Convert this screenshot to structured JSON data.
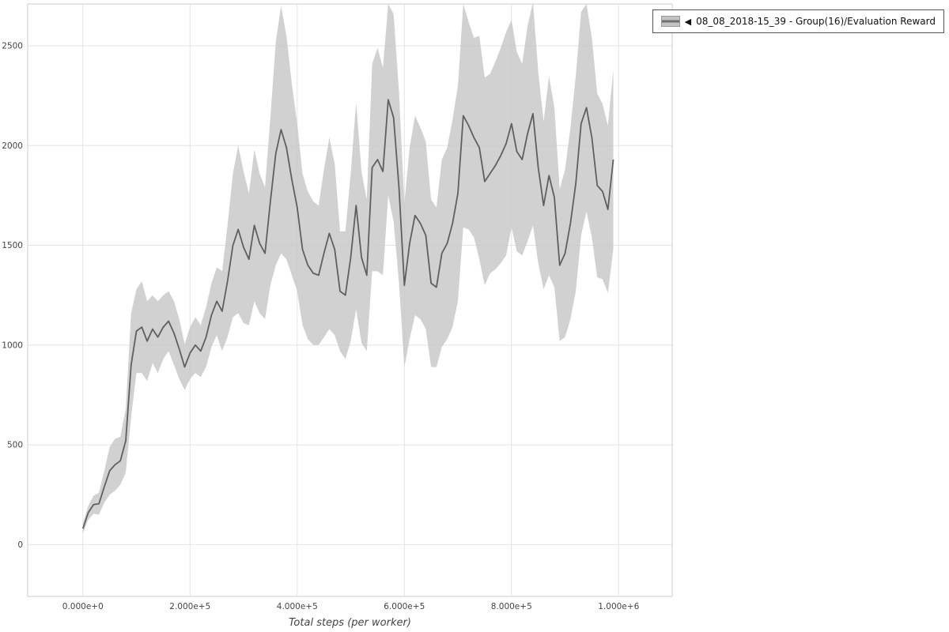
{
  "legend": {
    "items": [
      {
        "collapse_icon": "◀",
        "label": "08_08_2018-15_39 - Group(16)/Evaluation Reward"
      }
    ]
  },
  "chart_data": {
    "type": "line",
    "title": "",
    "xlabel": "Total steps (per worker)",
    "ylabel": "",
    "xlim": [
      -103000,
      1100000
    ],
    "ylim": [
      -260,
      2710
    ],
    "grid": true,
    "legend_position": "top-right",
    "colors": {
      "line": "#5f5f5f",
      "band": "#c5c5c5",
      "grid": "#e4e4e4",
      "border": "#cccccc",
      "tick_text": "#444444"
    },
    "x_ticks": [
      {
        "v": 0,
        "label": "0.000e+0"
      },
      {
        "v": 200000,
        "label": "2.000e+5"
      },
      {
        "v": 400000,
        "label": "4.000e+5"
      },
      {
        "v": 600000,
        "label": "6.000e+5"
      },
      {
        "v": 800000,
        "label": "8.000e+5"
      },
      {
        "v": 1000000,
        "label": "1.000e+6"
      }
    ],
    "y_ticks": [
      {
        "v": 0,
        "label": "0"
      },
      {
        "v": 500,
        "label": "500"
      },
      {
        "v": 1000,
        "label": "1000"
      },
      {
        "v": 1500,
        "label": "1500"
      },
      {
        "v": 2000,
        "label": "2000"
      },
      {
        "v": 2500,
        "label": "2500"
      }
    ],
    "series": [
      {
        "name": "08_08_2018-15_39 - Group(16)/Evaluation Reward",
        "x": [
          0,
          10000,
          20000,
          30000,
          40000,
          50000,
          60000,
          70000,
          80000,
          90000,
          100000,
          110000,
          120000,
          130000,
          140000,
          150000,
          160000,
          170000,
          180000,
          190000,
          200000,
          210000,
          220000,
          230000,
          240000,
          250000,
          260000,
          270000,
          280000,
          290000,
          300000,
          310000,
          320000,
          330000,
          340000,
          350000,
          360000,
          370000,
          380000,
          390000,
          400000,
          410000,
          420000,
          430000,
          440000,
          450000,
          460000,
          470000,
          480000,
          490000,
          500000,
          510000,
          520000,
          530000,
          540000,
          550000,
          560000,
          570000,
          580000,
          590000,
          600000,
          610000,
          620000,
          630000,
          640000,
          650000,
          660000,
          670000,
          680000,
          690000,
          700000,
          710000,
          720000,
          730000,
          740000,
          750000,
          760000,
          770000,
          780000,
          790000,
          800000,
          810000,
          820000,
          830000,
          840000,
          850000,
          860000,
          870000,
          880000,
          890000,
          900000,
          910000,
          920000,
          930000,
          940000,
          950000,
          960000,
          970000,
          980000,
          990000
        ],
        "mean": [
          80,
          160,
          200,
          205,
          290,
          370,
          400,
          420,
          520,
          900,
          1070,
          1090,
          1020,
          1080,
          1040,
          1090,
          1120,
          1060,
          980,
          890,
          960,
          1000,
          970,
          1040,
          1150,
          1220,
          1170,
          1320,
          1500,
          1580,
          1490,
          1430,
          1600,
          1510,
          1460,
          1720,
          1960,
          2080,
          1990,
          1830,
          1690,
          1480,
          1400,
          1360,
          1350,
          1460,
          1560,
          1480,
          1270,
          1250,
          1440,
          1700,
          1440,
          1350,
          1890,
          1930,
          1870,
          2230,
          2140,
          1790,
          1300,
          1510,
          1650,
          1610,
          1550,
          1310,
          1290,
          1460,
          1510,
          1610,
          1760,
          2150,
          2100,
          2040,
          1990,
          1820,
          1860,
          1900,
          1950,
          2010,
          2110,
          1970,
          1930,
          2060,
          2160,
          1890,
          1700,
          1850,
          1740,
          1400,
          1460,
          1610,
          1810,
          2110,
          2190,
          2040,
          1800,
          1770,
          1680,
          1930
        ],
        "band_upper": [
          105,
          195,
          245,
          260,
          370,
          490,
          530,
          540,
          680,
          1160,
          1280,
          1320,
          1220,
          1250,
          1220,
          1250,
          1270,
          1220,
          1130,
          1005,
          1090,
          1140,
          1100,
          1190,
          1310,
          1390,
          1370,
          1600,
          1860,
          2000,
          1870,
          1760,
          1980,
          1860,
          1790,
          2140,
          2520,
          2700,
          2550,
          2310,
          2110,
          1860,
          1770,
          1720,
          1700,
          1880,
          2040,
          1910,
          1570,
          1570,
          1860,
          2220,
          1870,
          1730,
          2410,
          2490,
          2390,
          2710,
          2660,
          2270,
          1710,
          1990,
          2150,
          2090,
          2020,
          1730,
          1690,
          1930,
          1990,
          2130,
          2300,
          2710,
          2620,
          2540,
          2550,
          2340,
          2360,
          2420,
          2490,
          2570,
          2630,
          2470,
          2410,
          2600,
          2720,
          2370,
          2120,
          2350,
          2190,
          1780,
          1880,
          2090,
          2350,
          2670,
          2710,
          2540,
          2260,
          2210,
          2100,
          2380
        ],
        "band_lower": [
          55,
          125,
          155,
          150,
          210,
          250,
          270,
          300,
          360,
          640,
          860,
          860,
          820,
          910,
          860,
          930,
          970,
          900,
          830,
          775,
          830,
          860,
          840,
          890,
          990,
          1050,
          970,
          1040,
          1140,
          1160,
          1110,
          1100,
          1220,
          1160,
          1130,
          1300,
          1400,
          1460,
          1430,
          1350,
          1270,
          1100,
          1030,
          1000,
          1000,
          1040,
          1080,
          1050,
          970,
          930,
          1020,
          1180,
          1010,
          970,
          1370,
          1370,
          1350,
          1750,
          1620,
          1310,
          890,
          1030,
          1150,
          1130,
          1080,
          890,
          890,
          990,
          1030,
          1090,
          1220,
          1590,
          1580,
          1540,
          1430,
          1300,
          1360,
          1380,
          1410,
          1450,
          1590,
          1470,
          1450,
          1520,
          1600,
          1410,
          1280,
          1350,
          1290,
          1020,
          1040,
          1130,
          1270,
          1550,
          1670,
          1540,
          1340,
          1330,
          1260,
          1480
        ]
      }
    ]
  }
}
